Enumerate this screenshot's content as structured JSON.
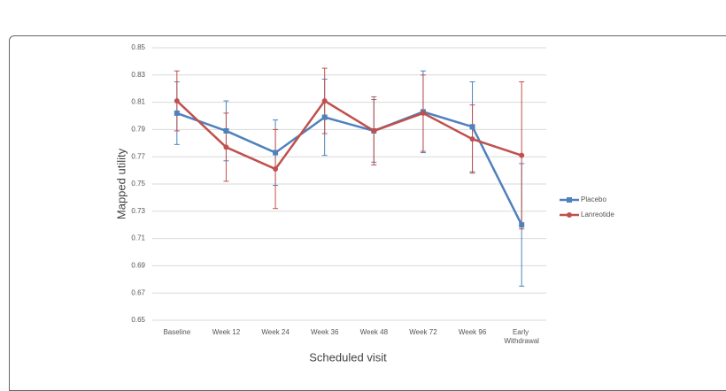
{
  "chart_data": {
    "type": "line",
    "y_label": "Mapped utility",
    "x_label": "Scheduled visit",
    "categories": [
      "Baseline",
      "Week 12",
      "Week 24",
      "Week 36",
      "Week 48",
      "Week 72",
      "Week 96",
      "Early Withdrawal"
    ],
    "series": [
      {
        "name": "Placebo",
        "color": "#4f81bd",
        "values": [
          0.802,
          0.789,
          0.773,
          0.799,
          0.789,
          0.803,
          0.792,
          0.72
        ],
        "errors": [
          0.023,
          0.022,
          0.024,
          0.028,
          0.023,
          0.03,
          0.033,
          0.045
        ]
      },
      {
        "name": "Lanreotide",
        "color": "#c0504d",
        "values": [
          0.811,
          0.777,
          0.761,
          0.811,
          0.789,
          0.802,
          0.783,
          0.771
        ],
        "errors": [
          0.022,
          0.025,
          0.029,
          0.024,
          0.025,
          0.028,
          0.025,
          0.054
        ]
      }
    ],
    "ylim": [
      0.65,
      0.85
    ],
    "yticks": [
      0.65,
      0.67,
      0.69,
      0.71,
      0.73,
      0.75,
      0.77,
      0.79,
      0.81,
      0.83,
      0.85
    ],
    "grid": true,
    "legend": "right"
  }
}
